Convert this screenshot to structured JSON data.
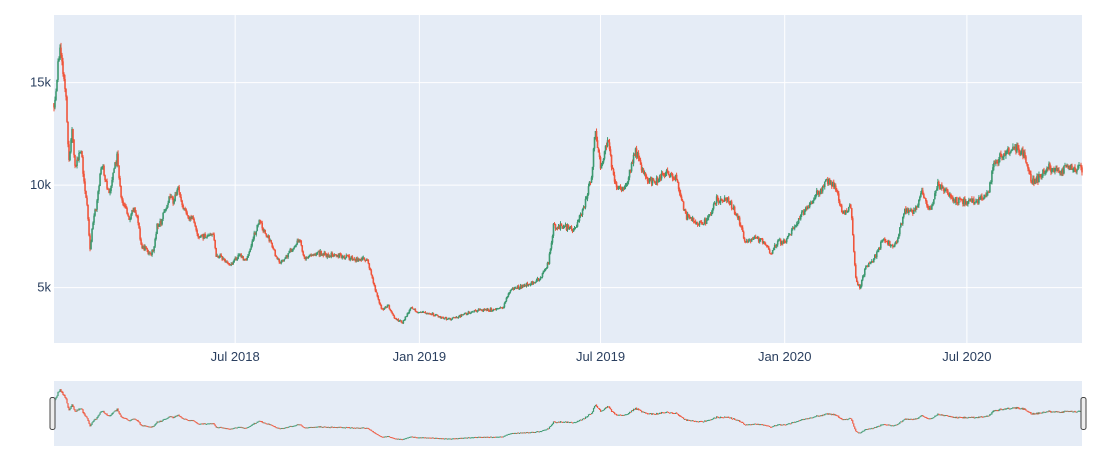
{
  "chart_data": {
    "type": "candlestick",
    "title": "",
    "xlabel": "",
    "ylabel": "",
    "x_range": [
      "2018-01-01",
      "2020-10-24"
    ],
    "ylim": [
      2300,
      18300
    ],
    "grid": true,
    "range_slider": true,
    "colors": {
      "increasing": "#3d9970",
      "decreasing": "#ef553b",
      "plot_bg": "#e5ecf6",
      "grid": "#ffffff",
      "tick_text": "#2a3f5f",
      "slider_handle_stroke": "#444444"
    },
    "y_ticks": [
      {
        "value": 5000,
        "label": "5k"
      },
      {
        "value": 10000,
        "label": "10k"
      },
      {
        "value": 15000,
        "label": "15k"
      }
    ],
    "x_ticks": [
      {
        "date": "2018-07-01",
        "label": "Jul 2018"
      },
      {
        "date": "2019-01-01",
        "label": "Jan 2019"
      },
      {
        "date": "2019-07-01",
        "label": "Jul 2019"
      },
      {
        "date": "2020-01-01",
        "label": "Jan 2020"
      },
      {
        "date": "2020-07-01",
        "label": "Jul 2020"
      }
    ],
    "price_anchors": [
      [
        "2018-01-01",
        14000
      ],
      [
        "2018-01-04",
        15200
      ],
      [
        "2018-01-07",
        17000
      ],
      [
        "2018-01-10",
        15300
      ],
      [
        "2018-01-13",
        14200
      ],
      [
        "2018-01-16",
        11200
      ],
      [
        "2018-01-19",
        12700
      ],
      [
        "2018-01-22",
        10800
      ],
      [
        "2018-01-25",
        11200
      ],
      [
        "2018-01-28",
        11800
      ],
      [
        "2018-01-31",
        10200
      ],
      [
        "2018-02-03",
        9100
      ],
      [
        "2018-02-06",
        6900
      ],
      [
        "2018-02-09",
        8200
      ],
      [
        "2018-02-12",
        8900
      ],
      [
        "2018-02-15",
        10100
      ],
      [
        "2018-02-18",
        11000
      ],
      [
        "2018-02-21",
        10300
      ],
      [
        "2018-02-25",
        9600
      ],
      [
        "2018-03-01",
        10500
      ],
      [
        "2018-03-05",
        11400
      ],
      [
        "2018-03-09",
        9300
      ],
      [
        "2018-03-13",
        9100
      ],
      [
        "2018-03-17",
        8200
      ],
      [
        "2018-03-21",
        8900
      ],
      [
        "2018-03-25",
        8500
      ],
      [
        "2018-03-29",
        7100
      ],
      [
        "2018-04-02",
        6900
      ],
      [
        "2018-04-06",
        6600
      ],
      [
        "2018-04-10",
        6800
      ],
      [
        "2018-04-14",
        8000
      ],
      [
        "2018-04-18",
        8200
      ],
      [
        "2018-04-22",
        8900
      ],
      [
        "2018-04-26",
        9300
      ],
      [
        "2018-04-30",
        9250
      ],
      [
        "2018-05-05",
        9800
      ],
      [
        "2018-05-10",
        9000
      ],
      [
        "2018-05-15",
        8500
      ],
      [
        "2018-05-20",
        8300
      ],
      [
        "2018-05-25",
        7500
      ],
      [
        "2018-05-30",
        7500
      ],
      [
        "2018-06-04",
        7600
      ],
      [
        "2018-06-09",
        7600
      ],
      [
        "2018-06-12",
        6600
      ],
      [
        "2018-06-17",
        6500
      ],
      [
        "2018-06-24",
        6100
      ],
      [
        "2018-06-30",
        6300
      ],
      [
        "2018-07-05",
        6600
      ],
      [
        "2018-07-12",
        6300
      ],
      [
        "2018-07-18",
        7300
      ],
      [
        "2018-07-25",
        8200
      ],
      [
        "2018-07-31",
        7700
      ],
      [
        "2018-08-07",
        7000
      ],
      [
        "2018-08-14",
        6200
      ],
      [
        "2018-08-21",
        6500
      ],
      [
        "2018-08-28",
        7000
      ],
      [
        "2018-09-04",
        7300
      ],
      [
        "2018-09-08",
        6400
      ],
      [
        "2018-09-15",
        6500
      ],
      [
        "2018-09-22",
        6700
      ],
      [
        "2018-09-30",
        6600
      ],
      [
        "2018-10-10",
        6600
      ],
      [
        "2018-10-20",
        6500
      ],
      [
        "2018-10-31",
        6350
      ],
      [
        "2018-11-10",
        6400
      ],
      [
        "2018-11-14",
        5600
      ],
      [
        "2018-11-20",
        4500
      ],
      [
        "2018-11-25",
        3900
      ],
      [
        "2018-12-01",
        4100
      ],
      [
        "2018-12-07",
        3500
      ],
      [
        "2018-12-15",
        3300
      ],
      [
        "2018-12-24",
        4000
      ],
      [
        "2019-01-01",
        3800
      ],
      [
        "2019-01-10",
        3800
      ],
      [
        "2019-01-20",
        3600
      ],
      [
        "2019-02-01",
        3450
      ],
      [
        "2019-02-10",
        3600
      ],
      [
        "2019-02-25",
        3900
      ],
      [
        "2019-03-10",
        3900
      ],
      [
        "2019-03-25",
        4000
      ],
      [
        "2019-04-02",
        4900
      ],
      [
        "2019-04-15",
        5100
      ],
      [
        "2019-05-01",
        5400
      ],
      [
        "2019-05-10",
        6200
      ],
      [
        "2019-05-15",
        8000
      ],
      [
        "2019-05-25",
        8000
      ],
      [
        "2019-06-05",
        7800
      ],
      [
        "2019-06-15",
        9000
      ],
      [
        "2019-06-22",
        10500
      ],
      [
        "2019-06-26",
        12800
      ],
      [
        "2019-07-01",
        10800
      ],
      [
        "2019-07-08",
        12300
      ],
      [
        "2019-07-15",
        10000
      ],
      [
        "2019-07-25",
        9800
      ],
      [
        "2019-08-05",
        11700
      ],
      [
        "2019-08-15",
        10300
      ],
      [
        "2019-08-25",
        10200
      ],
      [
        "2019-09-05",
        10600
      ],
      [
        "2019-09-15",
        10300
      ],
      [
        "2019-09-24",
        8500
      ],
      [
        "2019-10-05",
        8200
      ],
      [
        "2019-10-15",
        8200
      ],
      [
        "2019-10-25",
        9300
      ],
      [
        "2019-11-05",
        9300
      ],
      [
        "2019-11-15",
        8500
      ],
      [
        "2019-11-22",
        7300
      ],
      [
        "2019-12-01",
        7400
      ],
      [
        "2019-12-10",
        7300
      ],
      [
        "2019-12-18",
        6700
      ],
      [
        "2019-12-25",
        7250
      ],
      [
        "2020-01-01",
        7200
      ],
      [
        "2020-01-10",
        7900
      ],
      [
        "2020-01-20",
        8700
      ],
      [
        "2020-01-30",
        9400
      ],
      [
        "2020-02-08",
        9900
      ],
      [
        "2020-02-14",
        10300
      ],
      [
        "2020-02-22",
        9700
      ],
      [
        "2020-02-28",
        8600
      ],
      [
        "2020-03-07",
        9000
      ],
      [
        "2020-03-12",
        5400
      ],
      [
        "2020-03-16",
        5000
      ],
      [
        "2020-03-22",
        6000
      ],
      [
        "2020-03-30",
        6400
      ],
      [
        "2020-04-08",
        7300
      ],
      [
        "2020-04-20",
        7000
      ],
      [
        "2020-04-30",
        8700
      ],
      [
        "2020-05-10",
        8700
      ],
      [
        "2020-05-17",
        9700
      ],
      [
        "2020-05-25",
        8800
      ],
      [
        "2020-06-02",
        10000
      ],
      [
        "2020-06-15",
        9400
      ],
      [
        "2020-06-25",
        9200
      ],
      [
        "2020-07-10",
        9200
      ],
      [
        "2020-07-22",
        9500
      ],
      [
        "2020-07-28",
        11000
      ],
      [
        "2020-08-05",
        11500
      ],
      [
        "2020-08-15",
        11800
      ],
      [
        "2020-08-20",
        11800
      ],
      [
        "2020-08-28",
        11500
      ],
      [
        "2020-09-03",
        10200
      ],
      [
        "2020-09-10",
        10300
      ],
      [
        "2020-09-20",
        10900
      ],
      [
        "2020-10-01",
        10600
      ],
      [
        "2020-10-10",
        10900
      ],
      [
        "2020-10-24",
        10800
      ]
    ]
  }
}
